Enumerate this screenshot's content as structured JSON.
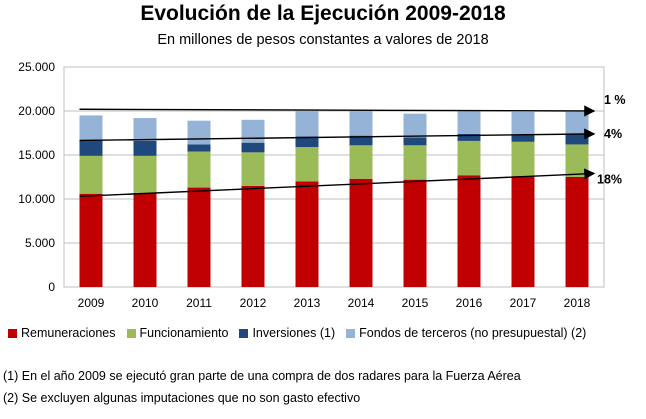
{
  "chart_data": {
    "type": "bar",
    "stacked": true,
    "title": "Evolución de la Ejecución 2009-2018",
    "subtitle": "En millones de pesos constantes a valores de 2018",
    "categories": [
      "2009",
      "2010",
      "2011",
      "2012",
      "2013",
      "2014",
      "2015",
      "2016",
      "2017",
      "2018"
    ],
    "ylim": [
      0,
      25000
    ],
    "yticks": [
      0,
      5000,
      10000,
      15000,
      20000,
      25000
    ],
    "ytick_labels": [
      "0",
      "5.000",
      "10.000",
      "15.000",
      "20.000",
      "25.000"
    ],
    "grid": true,
    "series": [
      {
        "name": "Remuneraciones",
        "color": "#C00000",
        "values": [
          10600,
          10700,
          11300,
          11500,
          12000,
          12300,
          12200,
          12700,
          12600,
          12500
        ]
      },
      {
        "name": "Funcionamiento",
        "color": "#9BBB59",
        "values": [
          4300,
          4200,
          4100,
          3800,
          3900,
          3800,
          3900,
          3900,
          3900,
          3700
        ]
      },
      {
        "name": "Inversiones (1)",
        "color": "#1F497D",
        "values": [
          1800,
          1700,
          800,
          1100,
          1200,
          1100,
          900,
          800,
          800,
          1200
        ]
      },
      {
        "name": "Fondos de terceros (no presupuestal) (2)",
        "color": "#95B3D7",
        "values": [
          2800,
          2600,
          2700,
          2600,
          2900,
          2900,
          2700,
          2600,
          2600,
          2500
        ]
      }
    ],
    "trendlines": [
      {
        "label": "1 %",
        "start": 20200,
        "end": 20000
      },
      {
        "label": "4%",
        "start": 16650,
        "end": 17400
      },
      {
        "label": "18%",
        "start": 10300,
        "end": 12900
      }
    ]
  },
  "notes": [
    "(1) En el año 2009 se ejecutó gran parte de una compra de dos radares para la Fuerza Aérea",
    "(2) Se excluyen algunas imputaciones que no son gasto efectivo"
  ]
}
